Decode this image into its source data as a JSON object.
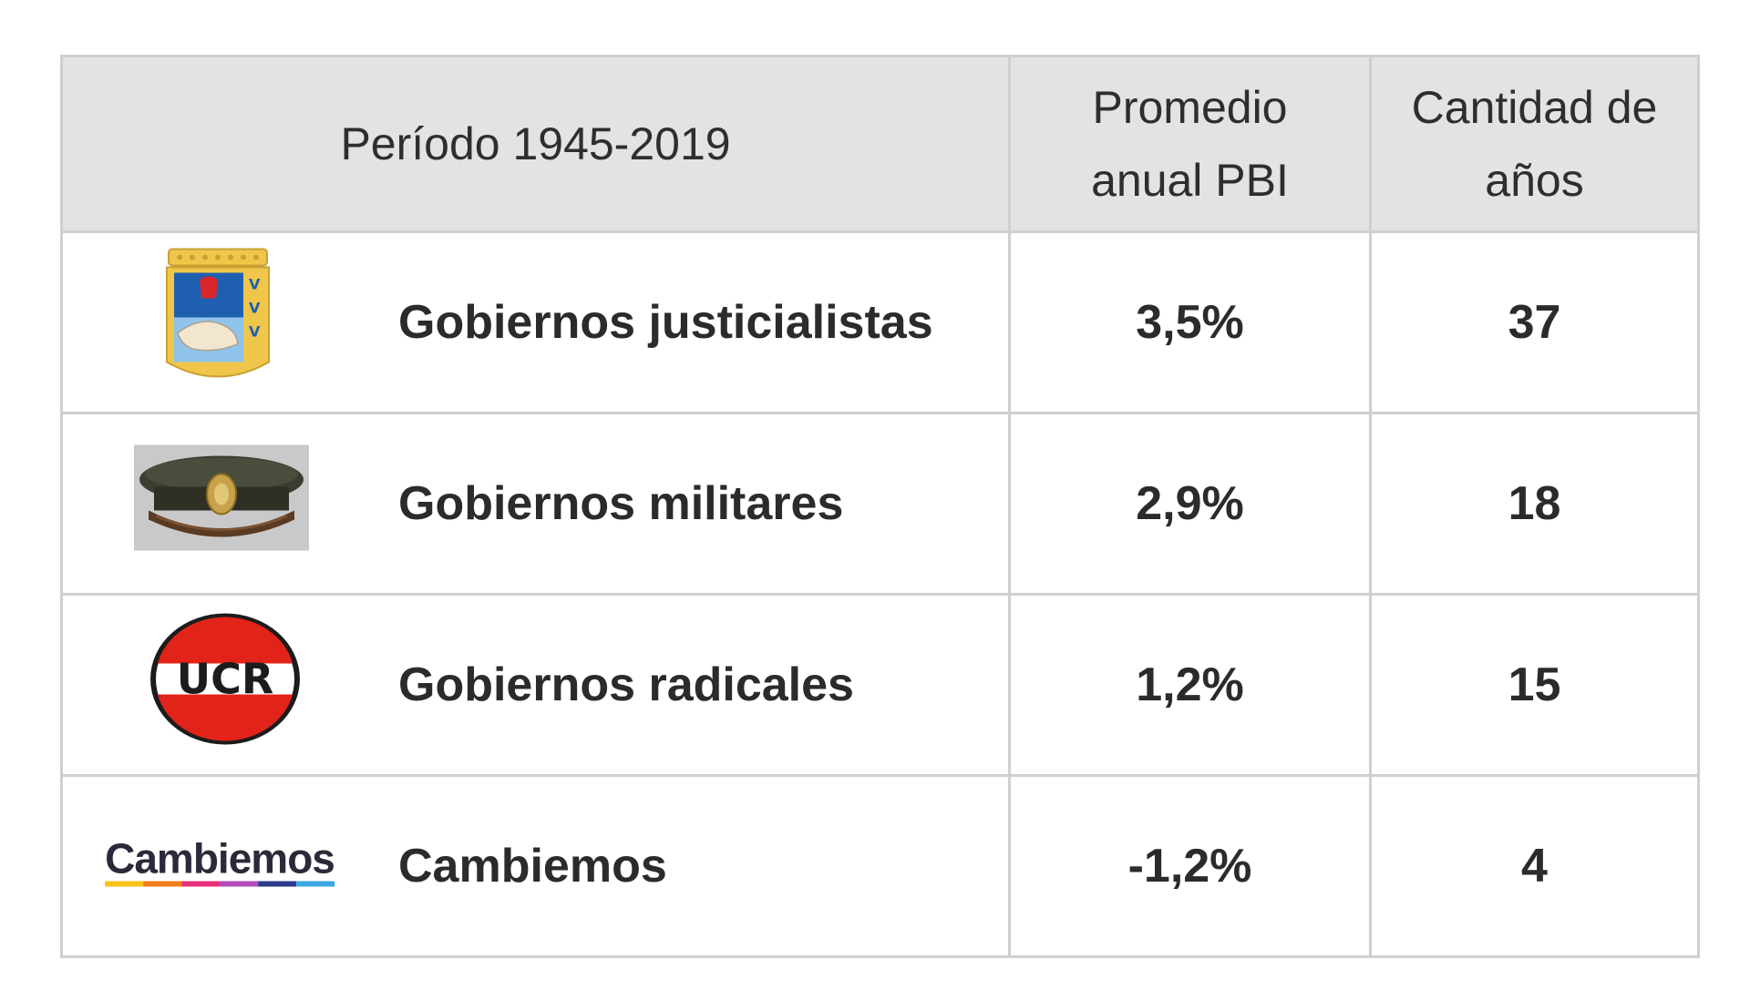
{
  "chart_data": {
    "type": "table",
    "columns": [
      "Período 1945-2019",
      "Promedio anual PBI",
      "Cantidad de años"
    ],
    "header": {
      "period": "Período 1945-2019",
      "avg_line1": "Promedio",
      "avg_line2": "anual PBI",
      "years_line1": "Cantidad de",
      "years_line2": "años"
    },
    "rows": [
      {
        "label": "Gobiernos justicialistas",
        "avg_gdp": "3,5%",
        "years": "37",
        "logo": "pj-shield-icon"
      },
      {
        "label": "Gobiernos militares",
        "avg_gdp": "2,9%",
        "years": "18",
        "logo": "military-cap-icon"
      },
      {
        "label": "Gobiernos radicales",
        "avg_gdp": "1,2%",
        "years": "15",
        "logo": "ucr-logo"
      },
      {
        "label": "Cambiemos",
        "avg_gdp": "-1,2%",
        "years": "4",
        "logo": "cambiemos-logo"
      }
    ],
    "values_avg_gdp_percent": [
      3.5,
      2.9,
      1.2,
      -1.2
    ],
    "values_years": [
      37,
      18,
      15,
      4
    ]
  },
  "logos": {
    "ucr_text": "UCR",
    "cambiemos_text": "Cambiemos"
  },
  "colors": {
    "header_bg": "#e3e3e3",
    "border": "#cfcfcf",
    "ucr_red": "#e2231a",
    "pj_blue": "#1f5fb0",
    "pj_gold": "#f0c64a"
  }
}
